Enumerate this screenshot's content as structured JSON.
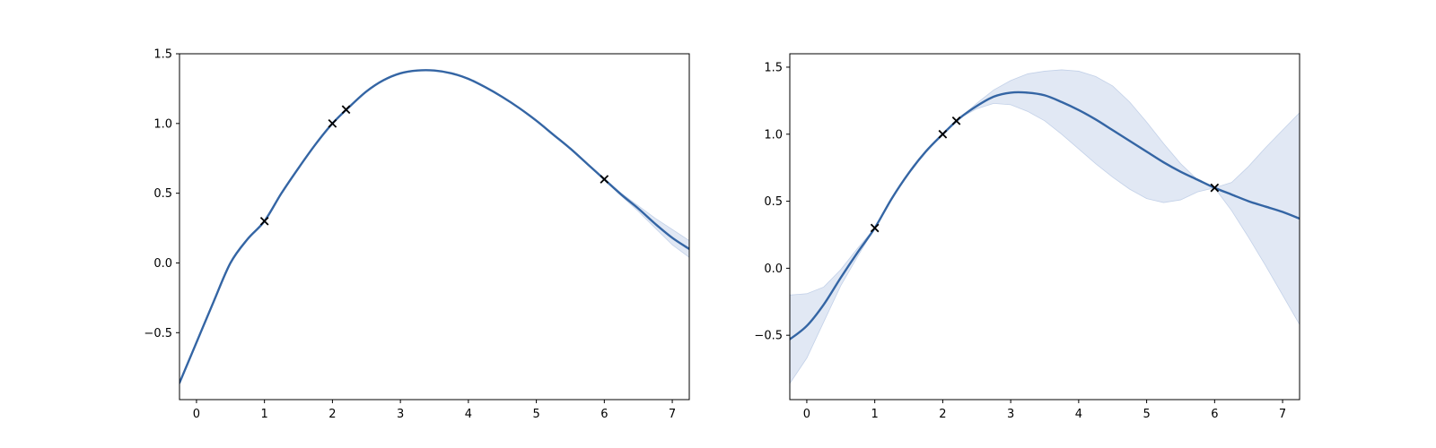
{
  "colors": {
    "mean_line": "#3465a4",
    "band_fill": "#e1e8f4",
    "band_edge": "#c3d1e8",
    "marker": "#000000",
    "axes": "#000000"
  },
  "chart_data": [
    {
      "type": "line",
      "title": "",
      "xlabel": "",
      "ylabel": "",
      "xlim": [
        -0.25,
        7.25
      ],
      "ylim": [
        -0.98,
        1.5
      ],
      "xticks": [
        "0",
        "1",
        "2",
        "3",
        "4",
        "5",
        "6",
        "7"
      ],
      "yticks": [
        "−0.5",
        "0.0",
        "0.5",
        "1.0",
        "1.5"
      ],
      "grid": false,
      "legend": "none",
      "series": [
        {
          "kind": "mean",
          "x": [
            -0.25,
            0.0,
            0.25,
            0.5,
            0.75,
            1.0,
            1.25,
            1.5,
            1.75,
            2.0,
            2.25,
            2.5,
            2.75,
            3.0,
            3.25,
            3.5,
            3.75,
            4.0,
            4.25,
            4.5,
            4.75,
            5.0,
            5.25,
            5.5,
            5.75,
            6.0,
            6.25,
            6.5,
            6.75,
            7.0,
            7.25
          ],
          "y": [
            -0.86,
            -0.57,
            -0.28,
            0.0,
            0.17,
            0.3,
            0.5,
            0.68,
            0.85,
            1.0,
            1.12,
            1.23,
            1.31,
            1.36,
            1.38,
            1.38,
            1.36,
            1.32,
            1.26,
            1.19,
            1.11,
            1.02,
            0.92,
            0.82,
            0.71,
            0.6,
            0.49,
            0.39,
            0.28,
            0.18,
            0.1
          ]
        },
        {
          "kind": "confidence-band",
          "x": [
            6.0,
            6.25,
            6.5,
            6.75,
            7.0,
            7.25
          ],
          "upper": [
            0.6,
            0.5,
            0.41,
            0.32,
            0.24,
            0.16
          ],
          "lower": [
            0.6,
            0.48,
            0.37,
            0.25,
            0.13,
            0.04
          ]
        },
        {
          "kind": "observations",
          "x": [
            1.0,
            2.0,
            2.2,
            6.0
          ],
          "y": [
            0.3,
            1.0,
            1.1,
            0.6
          ]
        }
      ]
    },
    {
      "type": "line",
      "title": "",
      "xlabel": "",
      "ylabel": "",
      "xlim": [
        -0.25,
        7.25
      ],
      "ylim": [
        -0.98,
        1.6
      ],
      "xticks": [
        "0",
        "1",
        "2",
        "3",
        "4",
        "5",
        "6",
        "7"
      ],
      "yticks": [
        "−0.5",
        "0.0",
        "0.5",
        "1.0",
        "1.5"
      ],
      "grid": false,
      "legend": "none",
      "series": [
        {
          "kind": "mean",
          "x": [
            -0.25,
            0.0,
            0.25,
            0.5,
            0.75,
            1.0,
            1.25,
            1.5,
            1.75,
            2.0,
            2.25,
            2.5,
            2.75,
            3.0,
            3.25,
            3.5,
            3.75,
            4.0,
            4.25,
            4.5,
            4.75,
            5.0,
            5.25,
            5.5,
            5.75,
            6.0,
            6.25,
            6.5,
            6.75,
            7.0,
            7.25
          ],
          "y": [
            -0.53,
            -0.43,
            -0.27,
            -0.07,
            0.12,
            0.3,
            0.52,
            0.71,
            0.87,
            1.0,
            1.12,
            1.21,
            1.28,
            1.31,
            1.31,
            1.29,
            1.24,
            1.18,
            1.11,
            1.03,
            0.95,
            0.87,
            0.79,
            0.72,
            0.66,
            0.6,
            0.55,
            0.5,
            0.46,
            0.42,
            0.37
          ]
        },
        {
          "kind": "confidence-band",
          "x": [
            -0.25,
            0.0,
            0.25,
            0.5,
            0.75,
            1.0,
            1.25,
            1.5,
            1.75,
            2.0,
            2.25,
            2.5,
            2.75,
            3.0,
            3.25,
            3.5,
            3.75,
            4.0,
            4.25,
            4.5,
            4.75,
            5.0,
            5.25,
            5.5,
            5.75,
            6.0,
            6.25,
            6.5,
            6.75,
            7.0,
            7.25
          ],
          "upper": [
            -0.2,
            -0.19,
            -0.14,
            -0.01,
            0.15,
            0.3,
            0.52,
            0.71,
            0.87,
            1.0,
            1.12,
            1.23,
            1.33,
            1.4,
            1.45,
            1.47,
            1.48,
            1.47,
            1.43,
            1.36,
            1.24,
            1.09,
            0.93,
            0.78,
            0.66,
            0.6,
            0.64,
            0.76,
            0.9,
            1.03,
            1.16
          ],
          "lower": [
            -0.86,
            -0.67,
            -0.4,
            -0.13,
            0.09,
            0.3,
            0.52,
            0.71,
            0.87,
            1.0,
            1.12,
            1.19,
            1.23,
            1.22,
            1.17,
            1.1,
            1.0,
            0.89,
            0.78,
            0.68,
            0.59,
            0.52,
            0.49,
            0.51,
            0.57,
            0.6,
            0.43,
            0.23,
            0.02,
            -0.2,
            -0.42
          ]
        },
        {
          "kind": "observations",
          "x": [
            1.0,
            2.0,
            2.2,
            6.0
          ],
          "y": [
            0.3,
            1.0,
            1.1,
            0.6
          ]
        }
      ]
    }
  ]
}
